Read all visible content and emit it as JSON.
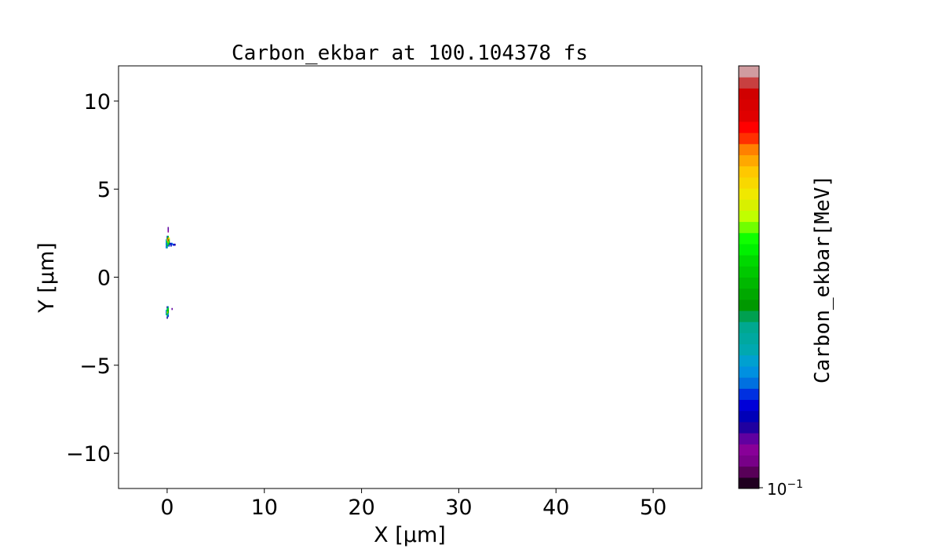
{
  "chart_data": {
    "type": "heatmap",
    "title": "Carbon_ekbar at 100.104378 fs",
    "xlabel": "X  [μm]",
    "ylabel": "Y  [μm]",
    "xlim": [
      -5,
      55
    ],
    "ylim": [
      -12,
      12
    ],
    "xticks": [
      0,
      10,
      20,
      30,
      40,
      50
    ],
    "yticks": [
      -10,
      -5,
      0,
      5,
      10
    ],
    "ytick_labels": [
      "−10",
      "−5",
      "0",
      "5",
      "10"
    ],
    "grid": false,
    "colorbar": {
      "label": "Carbon_ekbar[MeV]",
      "scale": "log",
      "tick_label": "10",
      "tick_exponent": "−1",
      "colors_bottom_to_top": [
        "#200020",
        "#580058",
        "#780088",
        "#880098",
        "#6000a0",
        "#2000a0",
        "#0000b8",
        "#0000d8",
        "#0030e0",
        "#0070e0",
        "#0090e0",
        "#00a0d0",
        "#00a8b0",
        "#00a8a0",
        "#00a890",
        "#00a050",
        "#009800",
        "#00a800",
        "#00b800",
        "#00c800",
        "#00d800",
        "#00f000",
        "#10ff00",
        "#70ff00",
        "#c0ff00",
        "#d8f000",
        "#f0e800",
        "#f8d800",
        "#ffc800",
        "#ffa800",
        "#ff8000",
        "#ff3000",
        "#ff0000",
        "#e00000",
        "#d80000",
        "#d00000",
        "#c84040",
        "#d09ca0"
      ]
    },
    "cells_note_units": "x,y in μm; level = colorbar segment index from bottom",
    "cells": [
      [
        0.1,
        2.8,
        4
      ],
      [
        0.1,
        2.7,
        4
      ],
      [
        0.1,
        2.6,
        3
      ],
      [
        0.0,
        2.3,
        8
      ],
      [
        0.1,
        2.3,
        20
      ],
      [
        0.0,
        2.2,
        16
      ],
      [
        0.1,
        2.2,
        30
      ],
      [
        0.2,
        2.2,
        26
      ],
      [
        -0.1,
        2.1,
        10
      ],
      [
        0.0,
        2.1,
        24
      ],
      [
        0.1,
        2.1,
        32
      ],
      [
        0.2,
        2.1,
        22
      ],
      [
        -0.1,
        2.0,
        12
      ],
      [
        0.0,
        2.0,
        20
      ],
      [
        0.1,
        2.0,
        28
      ],
      [
        0.2,
        2.0,
        18
      ],
      [
        -0.1,
        1.9,
        9
      ],
      [
        0.0,
        1.9,
        14
      ],
      [
        0.1,
        1.9,
        22
      ],
      [
        0.2,
        1.9,
        16
      ],
      [
        0.3,
        1.9,
        8
      ],
      [
        0.4,
        1.9,
        6
      ],
      [
        0.5,
        1.9,
        9
      ],
      [
        -0.1,
        1.8,
        10
      ],
      [
        0.0,
        1.8,
        18
      ],
      [
        0.1,
        1.8,
        12
      ],
      [
        0.2,
        1.8,
        8
      ],
      [
        0.4,
        1.8,
        6
      ],
      [
        0.6,
        1.85,
        8
      ],
      [
        0.7,
        1.85,
        7
      ],
      [
        0.8,
        1.85,
        5
      ],
      [
        -0.1,
        1.7,
        9
      ],
      [
        0.0,
        1.7,
        12
      ],
      [
        0.0,
        -1.7,
        5
      ],
      [
        0.1,
        -1.7,
        12
      ],
      [
        0.0,
        -1.8,
        14
      ],
      [
        0.1,
        -1.8,
        20
      ],
      [
        -0.1,
        -1.9,
        10
      ],
      [
        0.0,
        -1.9,
        22
      ],
      [
        0.1,
        -1.9,
        16
      ],
      [
        -0.1,
        -2.0,
        9
      ],
      [
        0.0,
        -2.0,
        26
      ],
      [
        0.1,
        -2.0,
        18
      ],
      [
        -0.1,
        -2.1,
        12
      ],
      [
        0.0,
        -2.1,
        20
      ],
      [
        0.1,
        -2.1,
        10
      ],
      [
        0.0,
        -2.2,
        14
      ],
      [
        0.1,
        -2.2,
        8
      ],
      [
        0.0,
        -2.3,
        5
      ],
      [
        0.5,
        -1.8,
        4
      ]
    ]
  }
}
